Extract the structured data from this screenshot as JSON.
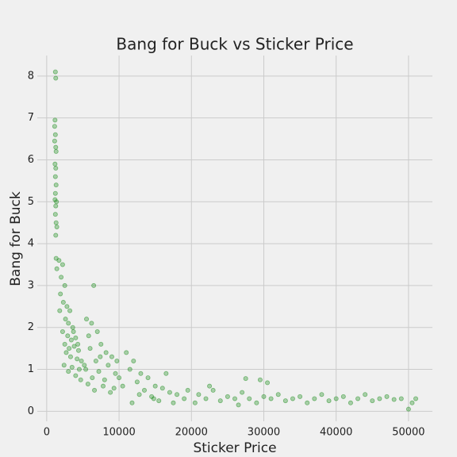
{
  "chart_data": {
    "type": "scatter",
    "title": "Bang for Buck vs Sticker Price",
    "x_label": "Sticker Price",
    "y_label": "Bang for Buck",
    "color": "#008000",
    "grid": true,
    "xlim": [
      -1300,
      53300
    ],
    "ylim": [
      -0.24,
      8.49
    ],
    "xticks": [
      0,
      10000,
      20000,
      30000,
      40000,
      50000
    ],
    "yticks": [
      0,
      1,
      2,
      3,
      4,
      5,
      6,
      7,
      8
    ],
    "x": [
      1200,
      1250,
      1150,
      1100,
      1200,
      1100,
      1250,
      1300,
      1150,
      1250,
      1200,
      1300,
      1200,
      1150,
      1350,
      1250,
      1200,
      1300,
      1400,
      1250,
      1300,
      1400,
      1700,
      2200,
      2000,
      2500,
      1900,
      2300,
      2800,
      1800,
      3200,
      2600,
      3000,
      3600,
      2200,
      2900,
      3400,
      4000,
      2500,
      3100,
      3800,
      4400,
      2700,
      3300,
      4200,
      4800,
      2400,
      3500,
      4500,
      5200,
      3000,
      4000,
      4700,
      3700,
      4300,
      5500,
      6200,
      7000,
      5800,
      6500,
      7500,
      8200,
      6000,
      9000,
      6800,
      8500,
      5400,
      7200,
      9500,
      6300,
      8000,
      10000,
      5700,
      7800,
      9300,
      6600,
      8800,
      10500,
      9700,
      7400,
      11000,
      12000,
      11500,
      13000,
      12500,
      14000,
      15000,
      13500,
      16000,
      17000,
      14500,
      18000,
      19000,
      15500,
      11800,
      16500,
      17500,
      19500,
      12800,
      14800,
      21000,
      22000,
      23000,
      24000,
      25000,
      26000,
      27000,
      27500,
      28000,
      29000,
      29500,
      30000,
      30500,
      31000,
      32000,
      33000,
      34000,
      35000,
      36000,
      37000,
      38000,
      39000,
      40000,
      41000,
      42000,
      43000,
      44000,
      45000,
      46000,
      47000,
      48000,
      49000,
      50000,
      50500,
      51000,
      22500,
      26500,
      20500
    ],
    "y": [
      8.1,
      7.95,
      6.95,
      6.8,
      6.6,
      6.45,
      6.3,
      6.2,
      5.9,
      5.8,
      5.6,
      5.4,
      5.2,
      5.05,
      5.0,
      4.9,
      4.7,
      4.5,
      4.4,
      4.2,
      3.65,
      3.4,
      3.6,
      3.5,
      3.2,
      3.0,
      2.8,
      2.6,
      2.5,
      2.4,
      2.4,
      2.2,
      2.1,
      2.0,
      1.9,
      1.8,
      1.7,
      1.75,
      1.6,
      1.5,
      1.55,
      1.45,
      1.4,
      1.3,
      1.25,
      1.2,
      1.1,
      1.05,
      1.0,
      1.1,
      0.95,
      0.85,
      0.75,
      1.9,
      1.6,
      2.2,
      2.1,
      1.9,
      1.8,
      3.0,
      1.6,
      1.4,
      1.5,
      1.3,
      1.2,
      1.1,
      1.0,
      0.95,
      0.9,
      0.8,
      0.75,
      0.8,
      0.65,
      0.6,
      0.55,
      0.5,
      0.45,
      0.6,
      1.2,
      1.3,
      1.4,
      1.2,
      1.0,
      0.9,
      0.7,
      0.8,
      0.6,
      0.5,
      0.55,
      0.45,
      0.35,
      0.4,
      0.3,
      0.25,
      0.2,
      0.9,
      0.2,
      0.5,
      0.4,
      0.3,
      0.4,
      0.3,
      0.5,
      0.25,
      0.35,
      0.3,
      0.45,
      0.78,
      0.3,
      0.2,
      0.75,
      0.35,
      0.68,
      0.3,
      0.4,
      0.25,
      0.3,
      0.35,
      0.2,
      0.3,
      0.4,
      0.25,
      0.3,
      0.35,
      0.2,
      0.3,
      0.4,
      0.25,
      0.3,
      0.35,
      0.28,
      0.3,
      0.05,
      0.2,
      0.3,
      0.6,
      0.15,
      0.2
    ]
  }
}
